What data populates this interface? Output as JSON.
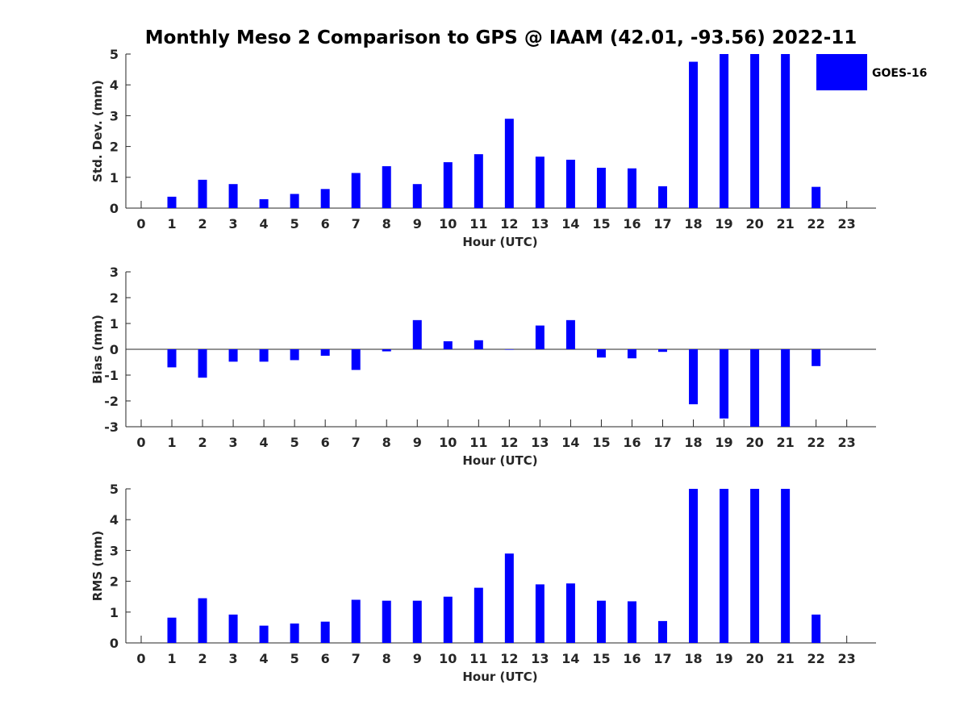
{
  "chart_data": {
    "title": "Monthly Meso 2 Comparison to GPS @ IAAM (42.01, -93.56) 2022-11",
    "legend": {
      "label": "GOES-16",
      "color": "#0000ff",
      "placement": "top-right"
    },
    "bar_color": "#0000ff",
    "panels": [
      {
        "type": "bar",
        "name": "std-dev",
        "ylabel": "Std. Dev. (mm)",
        "xlabel": "Hour (UTC)",
        "ylim": [
          0,
          5
        ],
        "yticks": [
          0,
          1,
          2,
          3,
          4,
          5
        ],
        "categories": [
          "0",
          "1",
          "2",
          "3",
          "4",
          "5",
          "6",
          "7",
          "8",
          "9",
          "10",
          "11",
          "12",
          "13",
          "14",
          "15",
          "16",
          "17",
          "18",
          "19",
          "20",
          "21",
          "22",
          "23"
        ],
        "series": [
          {
            "name": "GOES-16",
            "values": [
              null,
              0.37,
              0.92,
              0.78,
              0.29,
              0.46,
              0.62,
              1.14,
              1.36,
              0.78,
              1.49,
              1.75,
              2.9,
              1.67,
              1.57,
              1.31,
              1.29,
              0.71,
              4.75,
              5,
              5,
              5,
              0.69,
              null
            ]
          }
        ]
      },
      {
        "type": "bar",
        "name": "bias",
        "ylabel": "Bias (mm)",
        "xlabel": "Hour (UTC)",
        "ylim": [
          -3,
          3
        ],
        "yticks": [
          -3,
          -2,
          -1,
          0,
          1,
          2,
          3
        ],
        "zero_line": true,
        "categories": [
          "0",
          "1",
          "2",
          "3",
          "4",
          "5",
          "6",
          "7",
          "8",
          "9",
          "10",
          "11",
          "12",
          "13",
          "14",
          "15",
          "16",
          "17",
          "18",
          "19",
          "20",
          "21",
          "22",
          "23"
        ],
        "series": [
          {
            "name": "GOES-16",
            "values": [
              null,
              -0.7,
              -1.1,
              -0.48,
              -0.48,
              -0.42,
              -0.25,
              -0.8,
              -0.08,
              1.13,
              0.31,
              0.35,
              0.0,
              0.92,
              1.13,
              -0.32,
              -0.35,
              -0.1,
              -2.13,
              -2.68,
              -3,
              -3,
              -0.65,
              null
            ]
          }
        ]
      },
      {
        "type": "bar",
        "name": "rms",
        "ylabel": "RMS (mm)",
        "xlabel": "Hour (UTC)",
        "ylim": [
          0,
          5
        ],
        "yticks": [
          0,
          1,
          2,
          3,
          4,
          5
        ],
        "categories": [
          "0",
          "1",
          "2",
          "3",
          "4",
          "5",
          "6",
          "7",
          "8",
          "9",
          "10",
          "11",
          "12",
          "13",
          "14",
          "15",
          "16",
          "17",
          "18",
          "19",
          "20",
          "21",
          "22",
          "23"
        ],
        "series": [
          {
            "name": "GOES-16",
            "values": [
              null,
              0.82,
              1.45,
              0.92,
              0.56,
              0.63,
              0.69,
              1.4,
              1.37,
              1.37,
              1.5,
              1.79,
              2.9,
              1.9,
              1.93,
              1.37,
              1.35,
              0.71,
              5,
              5,
              5,
              5,
              0.92,
              null
            ]
          }
        ]
      }
    ]
  }
}
